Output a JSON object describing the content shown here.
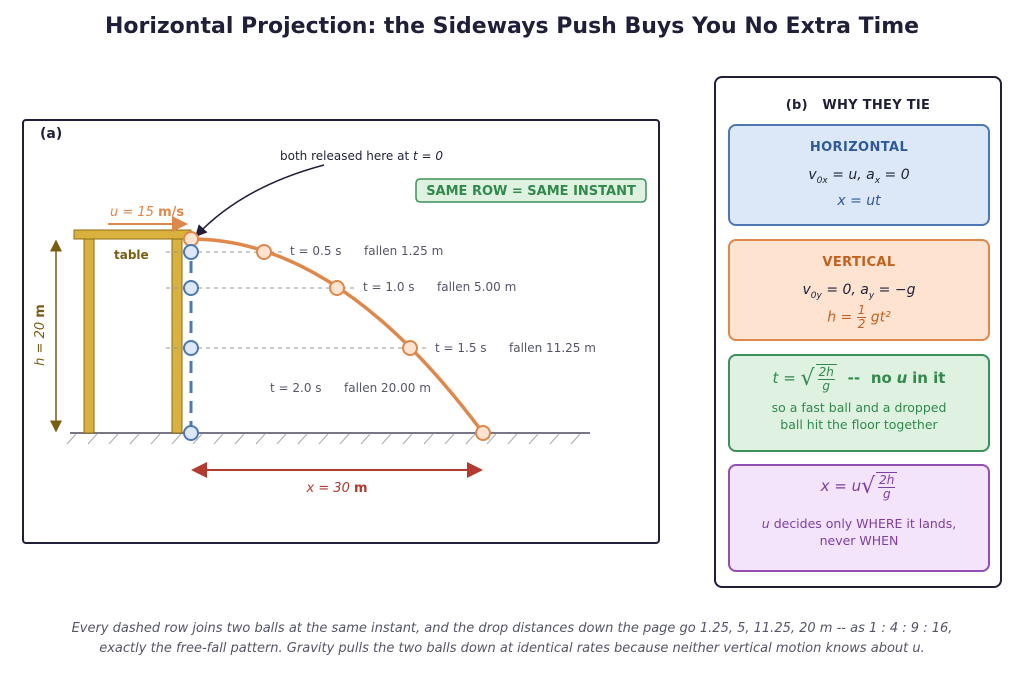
{
  "title": "Horizontal Projection: the Sideways Push Buys You No Extra Time",
  "panel_a": {
    "label": "(a)",
    "release_note": "both released here at",
    "release_time": "t = 0",
    "badge": "SAME ROW = SAME INSTANT",
    "speed_label": "u = 15",
    "speed_unit": "m/s",
    "table_label": "table",
    "height_label": "h = 20",
    "height_unit": "m",
    "range_label": "x = 30",
    "range_unit": "m",
    "rows": [
      {
        "time": "t = 0.5 s",
        "fallen": "fallen 1.25 m"
      },
      {
        "time": "t = 1.0 s",
        "fallen": "fallen 5.00 m"
      },
      {
        "time": "t = 1.5 s",
        "fallen": "fallen 11.25 m"
      },
      {
        "time": "t = 2.0 s",
        "fallen": "fallen 20.00 m"
      }
    ],
    "colors": {
      "projectile": "#e0874a",
      "dropped": "#4d78b5",
      "table": "#d9b13c",
      "range": "#b53a2e"
    }
  },
  "panel_b": {
    "heading_letter": "(b)",
    "heading": "WHY THEY TIE",
    "horizontal": {
      "title": "HORIZONTAL",
      "eq1_a": "v",
      "eq1_b": "0x",
      "eq1_c": "= u,   a",
      "eq1_d": "x",
      "eq1_e": "= 0",
      "eq2": "x = ut"
    },
    "vertical": {
      "title": "VERTICAL",
      "eq1_a": "v",
      "eq1_b": "0y",
      "eq1_c": "= 0,   a",
      "eq1_d": "y",
      "eq1_e": "= −g",
      "eq2_lhs": "h =",
      "eq2_num": "1",
      "eq2_den": "2",
      "eq2_rhs": "gt²"
    },
    "time_card": {
      "lhs": "t =",
      "num": "2h",
      "den": "g",
      "sep": "--",
      "no": "no",
      "u": "u",
      "in_it": "in it",
      "note_line1": "so a fast ball and a dropped",
      "note_line2": "ball hit the floor together"
    },
    "range_card": {
      "lhs": "x = u",
      "num": "2h",
      "den": "g",
      "note_u": "u",
      "note_line1": "decides only WHERE it lands,",
      "note_line2": "never WHEN"
    }
  },
  "caption": {
    "line1": "Every dashed row joins two balls at the same instant, and the drop distances down the page go 1.25, 5, 11.25, 20 m -- as 1 : 4 : 9 : 16,",
    "line2": "exactly the free-fall pattern. Gravity pulls the two balls down at identical rates because neither vertical motion knows about u."
  }
}
